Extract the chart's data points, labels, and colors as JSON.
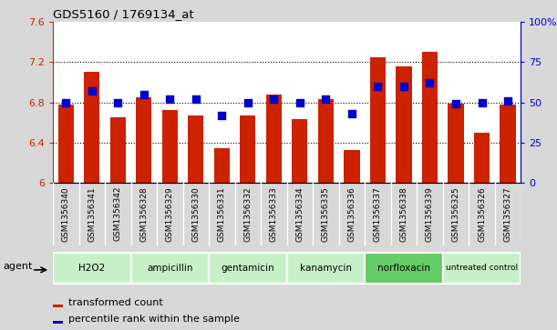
{
  "title": "GDS5160 / 1769134_at",
  "samples": [
    "GSM1356340",
    "GSM1356341",
    "GSM1356342",
    "GSM1356328",
    "GSM1356329",
    "GSM1356330",
    "GSM1356331",
    "GSM1356332",
    "GSM1356333",
    "GSM1356334",
    "GSM1356335",
    "GSM1356336",
    "GSM1356337",
    "GSM1356338",
    "GSM1356339",
    "GSM1356325",
    "GSM1356326",
    "GSM1356327"
  ],
  "bar_values": [
    6.78,
    7.1,
    6.65,
    6.85,
    6.72,
    6.67,
    6.35,
    6.67,
    6.88,
    6.63,
    6.83,
    6.33,
    7.25,
    7.16,
    7.3,
    6.79,
    6.5,
    6.78
  ],
  "percentile_values": [
    50,
    57,
    50,
    55,
    52,
    52,
    42,
    50,
    52,
    50,
    52,
    43,
    60,
    60,
    62,
    49,
    50,
    51
  ],
  "bar_color": "#cc2200",
  "percentile_color": "#0000cc",
  "ylim_left": [
    6.0,
    7.6
  ],
  "ylim_right": [
    0,
    100
  ],
  "yticks_left": [
    6.0,
    6.4,
    6.8,
    7.2,
    7.6
  ],
  "yticks_right": [
    0,
    25,
    50,
    75,
    100
  ],
  "ytick_labels_left": [
    "6",
    "6.4",
    "6.8",
    "7.2",
    "7.6"
  ],
  "ytick_labels_right": [
    "0",
    "25",
    "50",
    "75",
    "100%"
  ],
  "grid_lines": [
    6.4,
    6.8,
    7.2
  ],
  "agent_groups": [
    {
      "label": "H2O2",
      "start": 0,
      "end": 3,
      "color": "#c8f0c8"
    },
    {
      "label": "ampicillin",
      "start": 3,
      "end": 6,
      "color": "#c8f0c8"
    },
    {
      "label": "gentamicin",
      "start": 6,
      "end": 9,
      "color": "#c8f0c8"
    },
    {
      "label": "kanamycin",
      "start": 9,
      "end": 12,
      "color": "#c8f0c8"
    },
    {
      "label": "norfloxacin",
      "start": 12,
      "end": 15,
      "color": "#66cc66"
    },
    {
      "label": "untreated control",
      "start": 15,
      "end": 18,
      "color": "#c8f0c8"
    }
  ],
  "bar_width": 0.6,
  "legend_bar_label": "transformed count",
  "legend_pct_label": "percentile rank within the sample",
  "agent_label": "agent",
  "fig_bg": "#d8d8d8",
  "plot_bg": "#ffffff",
  "xtick_bg": "#c8c8c8",
  "tick_color_left": "#cc2200",
  "tick_color_right": "#0000cc"
}
